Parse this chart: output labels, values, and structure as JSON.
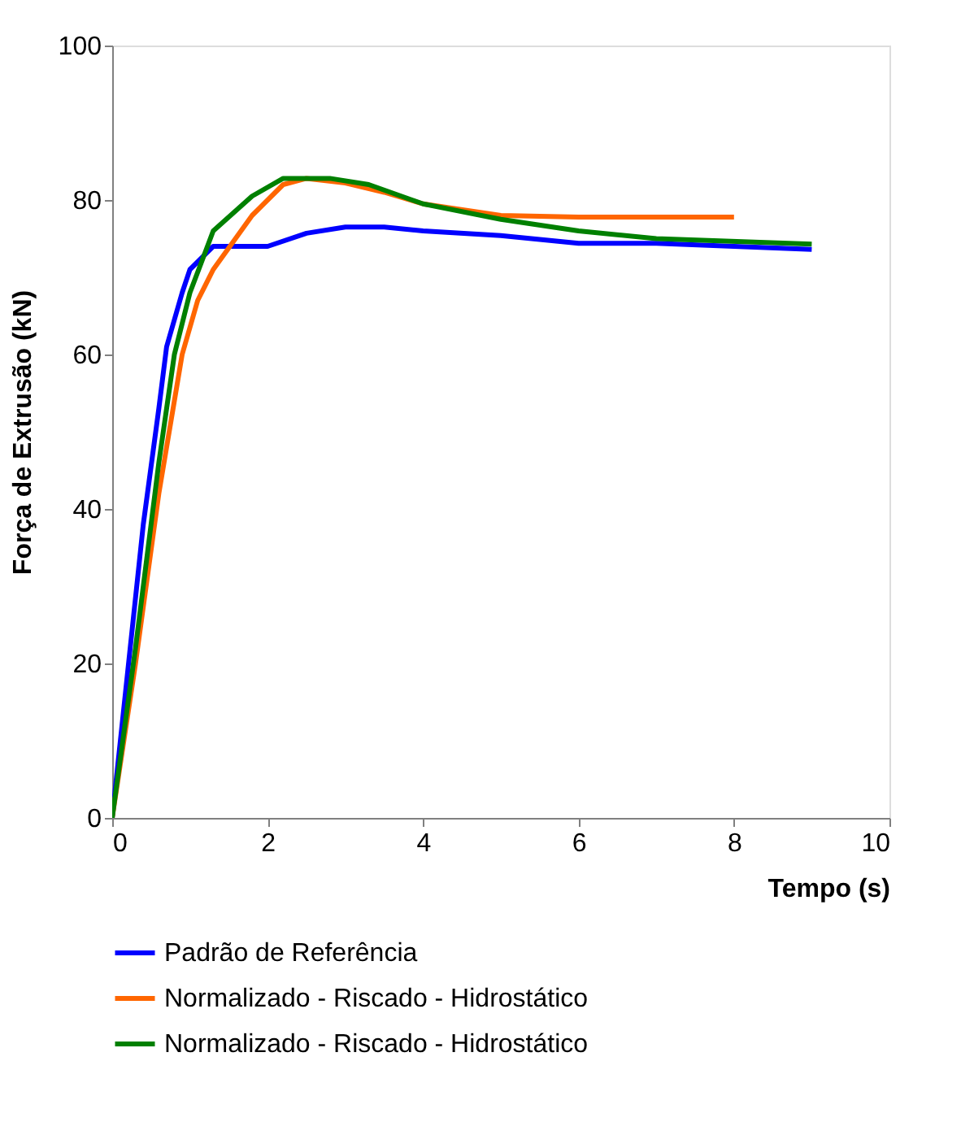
{
  "chart_data": {
    "type": "line",
    "xlabel": "Tempo (s)",
    "ylabel": "Força de Extrusão (kN)",
    "xlim": [
      0,
      10
    ],
    "ylim": [
      0,
      100
    ],
    "xticks": [
      0,
      2,
      4,
      6,
      8,
      10
    ],
    "yticks": [
      0,
      20,
      40,
      60,
      80,
      100
    ],
    "grid": false,
    "legend": "bottom",
    "marker": "none",
    "line_style": "solid",
    "series": [
      {
        "name": "Padrão de Referência",
        "color": "#0000ff",
        "x": [
          0,
          0.2,
          0.4,
          0.6,
          0.7,
          0.9,
          1.0,
          1.3,
          2,
          2.5,
          3,
          3.5,
          4,
          5,
          6,
          7,
          8,
          9
        ],
        "values": [
          0,
          19,
          38,
          53,
          61,
          68,
          71,
          74,
          74,
          75.7,
          76.5,
          76.5,
          76,
          75.4,
          74.4,
          74.4,
          74,
          73.6
        ]
      },
      {
        "name": "Normalizado - Riscado - Hidrostático",
        "color": "#ff6600",
        "x": [
          0,
          0.3,
          0.6,
          0.9,
          1.1,
          1.3,
          1.8,
          2.2,
          2.5,
          3,
          3.5,
          4,
          5,
          6,
          7,
          8
        ],
        "values": [
          0,
          20,
          42,
          60,
          67,
          71,
          78,
          82,
          82.8,
          82.2,
          81,
          79.5,
          78,
          77.8,
          77.8,
          77.8
        ]
      },
      {
        "name": "Normalizado - Riscado - Hidrostático",
        "color": "#008000",
        "x": [
          0,
          0.3,
          0.6,
          0.8,
          1,
          1.3,
          1.8,
          2.2,
          2.8,
          3.3,
          4,
          5,
          6,
          7,
          9
        ],
        "values": [
          0,
          22,
          46,
          60,
          68,
          76,
          80.5,
          82.8,
          82.8,
          82,
          79.5,
          77.5,
          76,
          75,
          74.3
        ]
      }
    ]
  }
}
